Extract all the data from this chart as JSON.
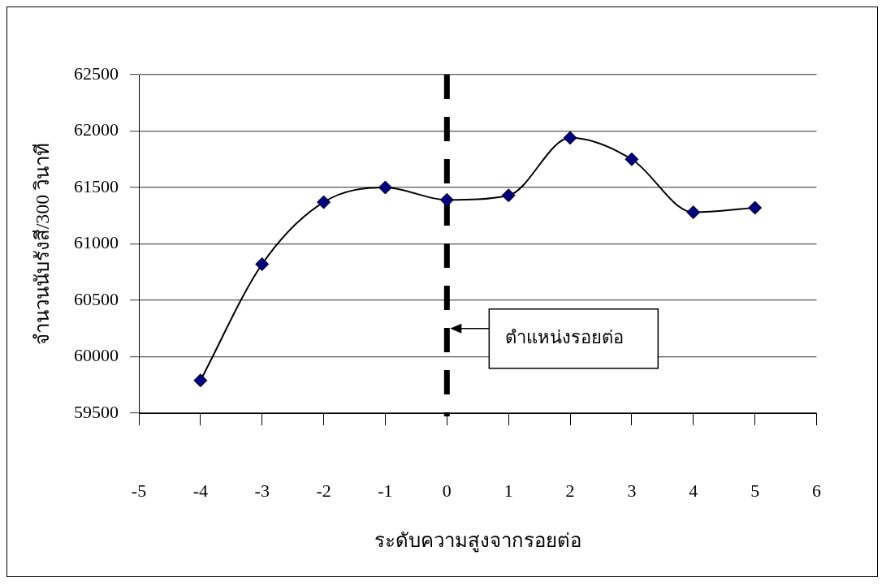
{
  "chart_data": {
    "type": "line",
    "xlabel": "ระดับความสูงจากรอยต่อ",
    "ylabel": "จำนวนนับรังสี/300 วินาที",
    "x": [
      -4,
      -3,
      -2,
      -1,
      0,
      1,
      2,
      3,
      4,
      5
    ],
    "series": [
      {
        "color": "#000080",
        "values": [
          59790,
          60820,
          61370,
          61500,
          61390,
          61430,
          61940,
          61750,
          61280,
          61320
        ]
      }
    ],
    "xlim": [
      -5,
      6
    ],
    "xticks": [
      -5,
      -4,
      -3,
      -2,
      -1,
      0,
      1,
      2,
      3,
      4,
      5,
      6
    ],
    "ylim": [
      59500,
      62500
    ],
    "yticks": [
      59500,
      60000,
      60500,
      61000,
      61500,
      62000,
      62500
    ],
    "grid": "y",
    "marker": "diamond",
    "line_style": "solid",
    "ref_lines": [
      {
        "axis": "x",
        "value": 0,
        "label": "ตำแหน่งรอยต่อ",
        "line_style": "dashed",
        "color": "#000000"
      }
    ]
  }
}
